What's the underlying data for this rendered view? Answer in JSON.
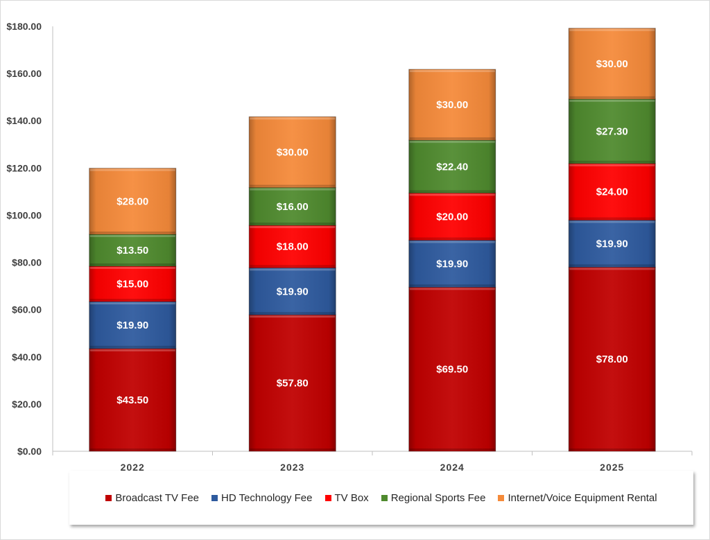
{
  "chart_data": {
    "type": "bar",
    "stacked": true,
    "categories": [
      "2022",
      "2023",
      "2024",
      "2025"
    ],
    "series": [
      {
        "name": "Broadcast TV Fee",
        "color": "#c00000",
        "values": [
          43.5,
          57.8,
          69.5,
          78.0
        ],
        "labels": [
          "$43.50",
          "$57.80",
          "$69.50",
          "$78.00"
        ]
      },
      {
        "name": "HD Technology Fee",
        "color": "#2e5a9e",
        "values": [
          19.9,
          19.9,
          19.9,
          19.9
        ],
        "labels": [
          "$19.90",
          "$19.90",
          "$19.90",
          "$19.90"
        ]
      },
      {
        "name": "TV Box",
        "color": "#ff0000",
        "values": [
          15.0,
          18.0,
          20.0,
          24.0
        ],
        "labels": [
          "$15.00",
          "$18.00",
          "$20.00",
          "$24.00"
        ]
      },
      {
        "name": "Regional Sports Fee",
        "color": "#4f8a2e",
        "values": [
          13.5,
          16.0,
          22.4,
          27.3
        ],
        "labels": [
          "$13.50",
          "$16.00",
          "$22.40",
          "$27.30"
        ]
      },
      {
        "name": "Internet/Voice Equipment Rental",
        "color": "#f58a3a",
        "values": [
          28.0,
          30.0,
          30.0,
          30.0
        ],
        "labels": [
          "$28.00",
          "$30.00",
          "$30.00",
          "$30.00"
        ]
      }
    ],
    "yticks": [
      "$0.00",
      "$20.00",
      "$40.00",
      "$60.00",
      "$80.00",
      "$100.00",
      "$120.00",
      "$140.00",
      "$160.00",
      "$180.00"
    ],
    "ylim": [
      0,
      180
    ],
    "grid": false,
    "legend": "bottom"
  }
}
